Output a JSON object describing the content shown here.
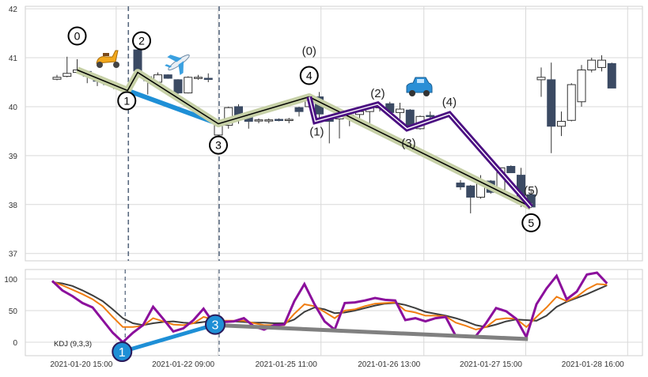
{
  "chart_data": [
    {
      "type": "candlestick",
      "ylim": [
        36.85,
        42.05
      ],
      "yticks": [
        "37",
        "38",
        "39",
        "40",
        "41",
        "42"
      ],
      "xticks": [
        {
          "label": "2021-01-20 15:00",
          "index": 5.9
        },
        {
          "label": "2021-01-22 09:00",
          "index": 16
        },
        {
          "label": "2021-01-25 11:00",
          "index": 26.2
        },
        {
          "label": "2021-01-26 13:00",
          "index": 36.4
        },
        {
          "label": "2021-01-27 15:00",
          "index": 46.5
        },
        {
          "label": "2021-01-28 16:00",
          "index": 56.6
        }
      ],
      "grid": true,
      "colors": {
        "up_fill": "#ffffff",
        "down_fill": "#3b4a63",
        "wick": "#333333",
        "main_wave": "#c6d0a6",
        "sub_wave": "#4b0f82",
        "divergence": "#1e8fd6",
        "marker_line": "#5a6a80"
      },
      "candles": [
        [
          0,
          40.56,
          40.65,
          40.54,
          40.6
        ],
        [
          1,
          40.62,
          41.02,
          40.6,
          40.68
        ],
        [
          2,
          40.7,
          40.97,
          40.68,
          40.75
        ],
        [
          3,
          40.72,
          40.73,
          40.48,
          40.62
        ],
        [
          4,
          40.62,
          40.63,
          40.42,
          40.52
        ],
        [
          5,
          40.5,
          40.52,
          40.44,
          40.45
        ],
        [
          6,
          40.43,
          40.45,
          40.36,
          40.37
        ],
        [
          8,
          41.16,
          41.18,
          40.7,
          40.73
        ],
        [
          9,
          40.61,
          40.62,
          40.25,
          40.53
        ],
        [
          10,
          40.5,
          40.7,
          40.48,
          40.65
        ],
        [
          11,
          40.65,
          40.66,
          40.57,
          40.58
        ],
        [
          12,
          40.55,
          40.56,
          40.25,
          40.28
        ],
        [
          13,
          40.28,
          40.62,
          40.27,
          40.6
        ],
        [
          14,
          40.6,
          40.65,
          40.55,
          40.6
        ],
        [
          15,
          40.58,
          40.68,
          40.5,
          40.56
        ],
        [
          16,
          39.42,
          39.7,
          39.4,
          39.65
        ],
        [
          17,
          39.62,
          40.0,
          39.55,
          39.98
        ],
        [
          18,
          40.0,
          40.05,
          39.65,
          39.78
        ],
        [
          19,
          39.8,
          39.82,
          39.55,
          39.7
        ],
        [
          20,
          39.72,
          39.76,
          39.66,
          39.73
        ],
        [
          21,
          39.72,
          39.76,
          39.66,
          39.73
        ],
        [
          22,
          39.74,
          39.76,
          39.7,
          39.72
        ],
        [
          23,
          39.72,
          39.77,
          39.66,
          39.74
        ],
        [
          24,
          39.98,
          40.0,
          39.8,
          39.9
        ],
        [
          25,
          40.0,
          40.22,
          39.98,
          40.2
        ],
        [
          26,
          40.2,
          40.3,
          39.7,
          39.85
        ],
        [
          27,
          39.8,
          39.82,
          39.25,
          39.7
        ],
        [
          28,
          39.75,
          39.9,
          39.35,
          39.85
        ],
        [
          29,
          39.8,
          39.85,
          39.6,
          39.83
        ],
        [
          30,
          39.84,
          39.92,
          39.7,
          39.9
        ],
        [
          31,
          39.9,
          40.0,
          39.6,
          39.98
        ],
        [
          32,
          39.98,
          40.02,
          39.9,
          40.0
        ],
        [
          33,
          40.06,
          40.1,
          39.85,
          39.88
        ],
        [
          34,
          39.88,
          40.08,
          39.75,
          39.95
        ],
        [
          35,
          39.93,
          39.95,
          39.55,
          39.6
        ],
        [
          36,
          39.55,
          39.82,
          39.53,
          39.8
        ],
        [
          37,
          39.82,
          39.9,
          39.75,
          39.8
        ],
        [
          40,
          38.44,
          38.5,
          38.3,
          38.36
        ],
        [
          41,
          38.38,
          38.4,
          37.82,
          38.15
        ],
        [
          42,
          38.15,
          38.6,
          38.12,
          38.45
        ],
        [
          43,
          38.48,
          38.5,
          38.22,
          38.25
        ],
        [
          44,
          38.3,
          38.75,
          38.25,
          38.75
        ],
        [
          45,
          38.78,
          38.8,
          38.65,
          38.65
        ],
        [
          46,
          38.6,
          38.75,
          37.95,
          38.1
        ],
        [
          47,
          38.2,
          38.3,
          37.93,
          37.95
        ],
        [
          48,
          40.55,
          40.8,
          40.2,
          40.6
        ],
        [
          49,
          40.55,
          40.9,
          39.05,
          39.6
        ],
        [
          50,
          39.6,
          39.9,
          39.4,
          39.7
        ],
        [
          51,
          39.72,
          40.48,
          39.7,
          40.45
        ],
        [
          52,
          40.1,
          40.85,
          40.0,
          40.75
        ],
        [
          53,
          40.75,
          41.0,
          40.7,
          40.95
        ],
        [
          54,
          40.8,
          41.05,
          40.72,
          40.95
        ],
        [
          55,
          40.88,
          40.9,
          40.38,
          40.38
        ]
      ],
      "vlines": [
        7.0,
        16.0
      ],
      "main_wave": {
        "points": [
          [
            2,
            40.75
          ],
          [
            7,
            40.33
          ],
          [
            8,
            40.7
          ],
          [
            16,
            39.65
          ],
          [
            25,
            40.2
          ],
          [
            47,
            37.95
          ]
        ],
        "labels": [
          "0",
          "1",
          "2",
          "3",
          "4",
          "5"
        ]
      },
      "sub_wave": {
        "points": [
          [
            25,
            40.2
          ],
          [
            25.6,
            39.7
          ],
          [
            31.8,
            40.05
          ],
          [
            34.7,
            39.55
          ],
          [
            38.9,
            39.85
          ],
          [
            47,
            37.95
          ]
        ],
        "labels": [
          "(0)",
          "(1)",
          "(2)",
          "(3)",
          "(4)",
          "(5)"
        ]
      },
      "divergence_line": [
        [
          7,
          40.33
        ],
        [
          16,
          39.65
        ]
      ],
      "icons": [
        "scooter-icon",
        "airplane-icon",
        "car-icon"
      ]
    },
    {
      "type": "line",
      "title": "KDJ (9,3,3)",
      "ylim": [
        -20,
        118
      ],
      "yticks": [
        "0",
        "50",
        "100"
      ],
      "grid": true,
      "series": [
        {
          "key": "J",
          "color": "#8b0f9c",
          "values": [
            97,
            82,
            73,
            62,
            55,
            35,
            15,
            0,
            15,
            27,
            56,
            37,
            17,
            22,
            35,
            53,
            30,
            32,
            33,
            38,
            25,
            20,
            27,
            28,
            65,
            92,
            60,
            33,
            20,
            62,
            63,
            66,
            70,
            67,
            66,
            35,
            38,
            33,
            38,
            40,
            10,
            10,
            10,
            30,
            54,
            49,
            37,
            8,
            60,
            85,
            105,
            68,
            80,
            107,
            110,
            93
          ]
        },
        {
          "key": "K",
          "color": "#f07d12",
          "values": [
            96,
            90,
            83,
            76,
            68,
            57,
            40,
            24,
            24,
            26,
            38,
            33,
            28,
            27,
            30,
            40,
            36,
            34,
            34,
            34,
            30,
            27,
            27,
            27,
            45,
            60,
            57,
            48,
            38,
            50,
            52,
            57,
            61,
            62,
            63,
            50,
            47,
            42,
            42,
            41,
            31,
            26,
            20,
            24,
            36,
            38,
            37,
            24,
            40,
            55,
            72,
            65,
            72,
            84,
            92,
            91
          ]
        },
        {
          "key": "D",
          "color": "#3d3d3d",
          "values": [
            95,
            93,
            89,
            82,
            74,
            65,
            52,
            38,
            30,
            27,
            30,
            32,
            33,
            31,
            30,
            32,
            34,
            33,
            33,
            32,
            31,
            31,
            30,
            30,
            36,
            48,
            55,
            52,
            46,
            47,
            50,
            54,
            58,
            61,
            62,
            59,
            54,
            48,
            45,
            42,
            38,
            33,
            27,
            24,
            28,
            33,
            36,
            35,
            34,
            42,
            56,
            64,
            70,
            76,
            83,
            90
          ]
        }
      ],
      "divergence": {
        "points": [
          [
            7,
            -15
          ],
          [
            16,
            28
          ]
        ],
        "labels": [
          "1",
          "3"
        ],
        "color": "#1e8fd6"
      },
      "trend_line": {
        "points": [
          [
            16,
            27
          ],
          [
            47,
            5
          ]
        ],
        "color": "#808080"
      }
    }
  ]
}
